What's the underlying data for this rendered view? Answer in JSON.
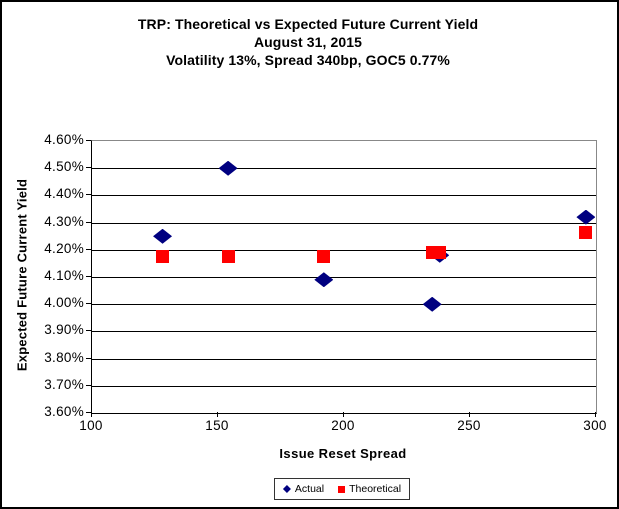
{
  "chart_data": {
    "type": "scatter",
    "title": "TRP: Theoretical vs Expected Future Current Yield",
    "subtitle": [
      "August 31, 2015",
      "Volatility 13%, Spread 340bp, GOC5 0.77%"
    ],
    "xlabel": "Issue Reset Spread",
    "ylabel": "Expected Future Current Yield",
    "xlim": [
      100,
      300
    ],
    "ylim": [
      3.6,
      4.6
    ],
    "x_ticks": [
      100,
      150,
      200,
      250,
      300
    ],
    "x_tick_labels": [
      "100",
      "150",
      "200",
      "250",
      "300"
    ],
    "y_ticks": [
      4.6,
      4.5,
      4.4,
      4.3,
      4.2,
      4.1,
      4.0,
      3.9,
      3.8,
      3.7,
      3.6
    ],
    "y_tick_labels": [
      "4.60%",
      "4.50%",
      "4.40%",
      "4.30%",
      "4.20%",
      "4.10%",
      "4.00%",
      "3.90%",
      "3.80%",
      "3.70%",
      "3.60%"
    ],
    "grid": "horizontal",
    "legend_position": "bottom-center",
    "series": [
      {
        "name": "Actual",
        "marker": "diamond",
        "color": "#000080",
        "points": [
          [
            128,
            4.25
          ],
          [
            154,
            4.5
          ],
          [
            192,
            4.09
          ],
          [
            235,
            4.0
          ],
          [
            238,
            4.18
          ],
          [
            296,
            4.32
          ]
        ]
      },
      {
        "name": "Theoretical",
        "marker": "square",
        "color": "#FF0000",
        "points": [
          [
            128,
            4.175
          ],
          [
            154,
            4.175
          ],
          [
            192,
            4.175
          ],
          [
            235,
            4.19
          ],
          [
            238,
            4.19
          ],
          [
            296,
            4.265
          ]
        ]
      }
    ]
  }
}
